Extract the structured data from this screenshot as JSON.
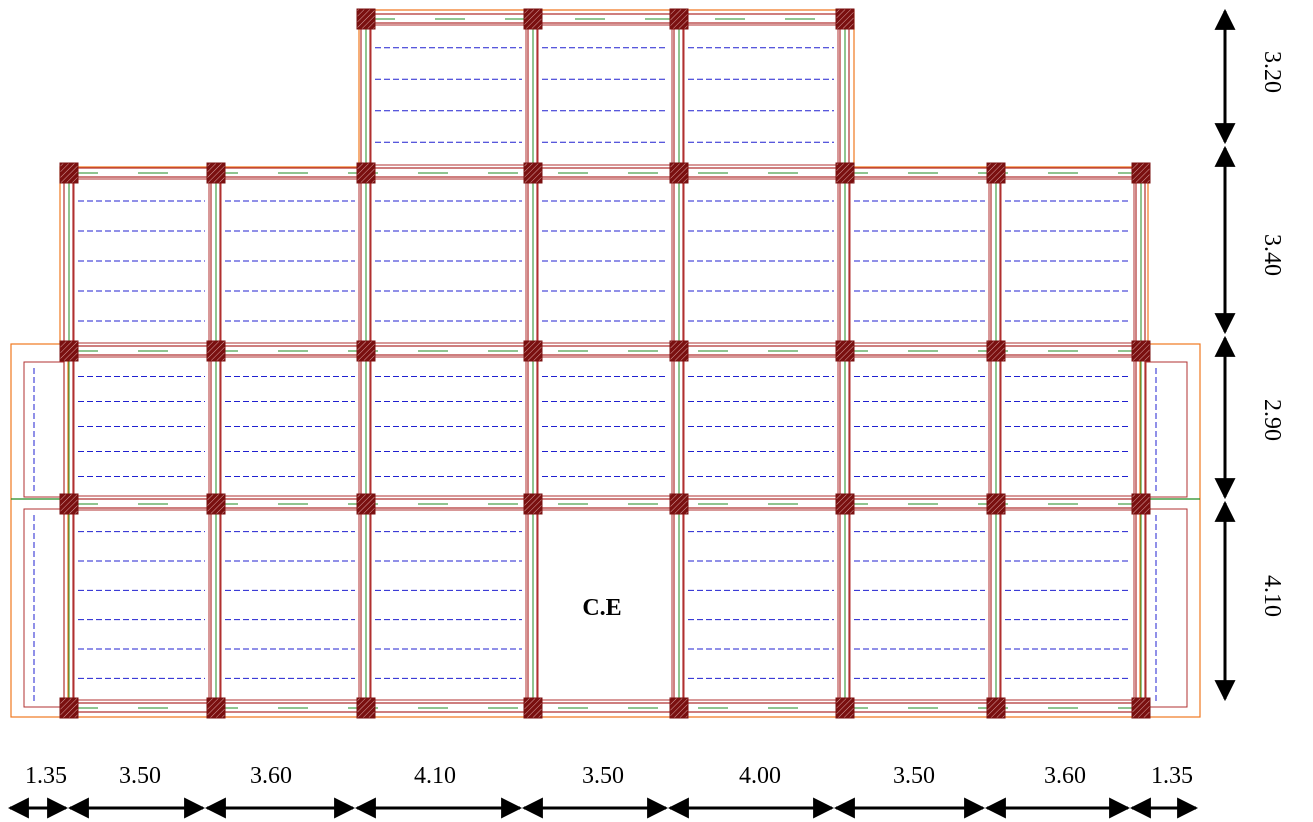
{
  "plan": {
    "column_spacing": [
      "1.35",
      "3.50",
      "3.60",
      "4.10",
      "3.50",
      "4.00",
      "3.50",
      "3.60",
      "1.35"
    ],
    "row_spacing": [
      "3.20",
      "3.40",
      "2.90",
      "4.10"
    ],
    "room_label": "C.E",
    "colors": {
      "beam": "#b03030",
      "beam_secondary": "#228b22",
      "slab_edge": "#f07820",
      "joist": "#2020d0",
      "column": "#7a1010",
      "dimension": "#000000"
    }
  }
}
